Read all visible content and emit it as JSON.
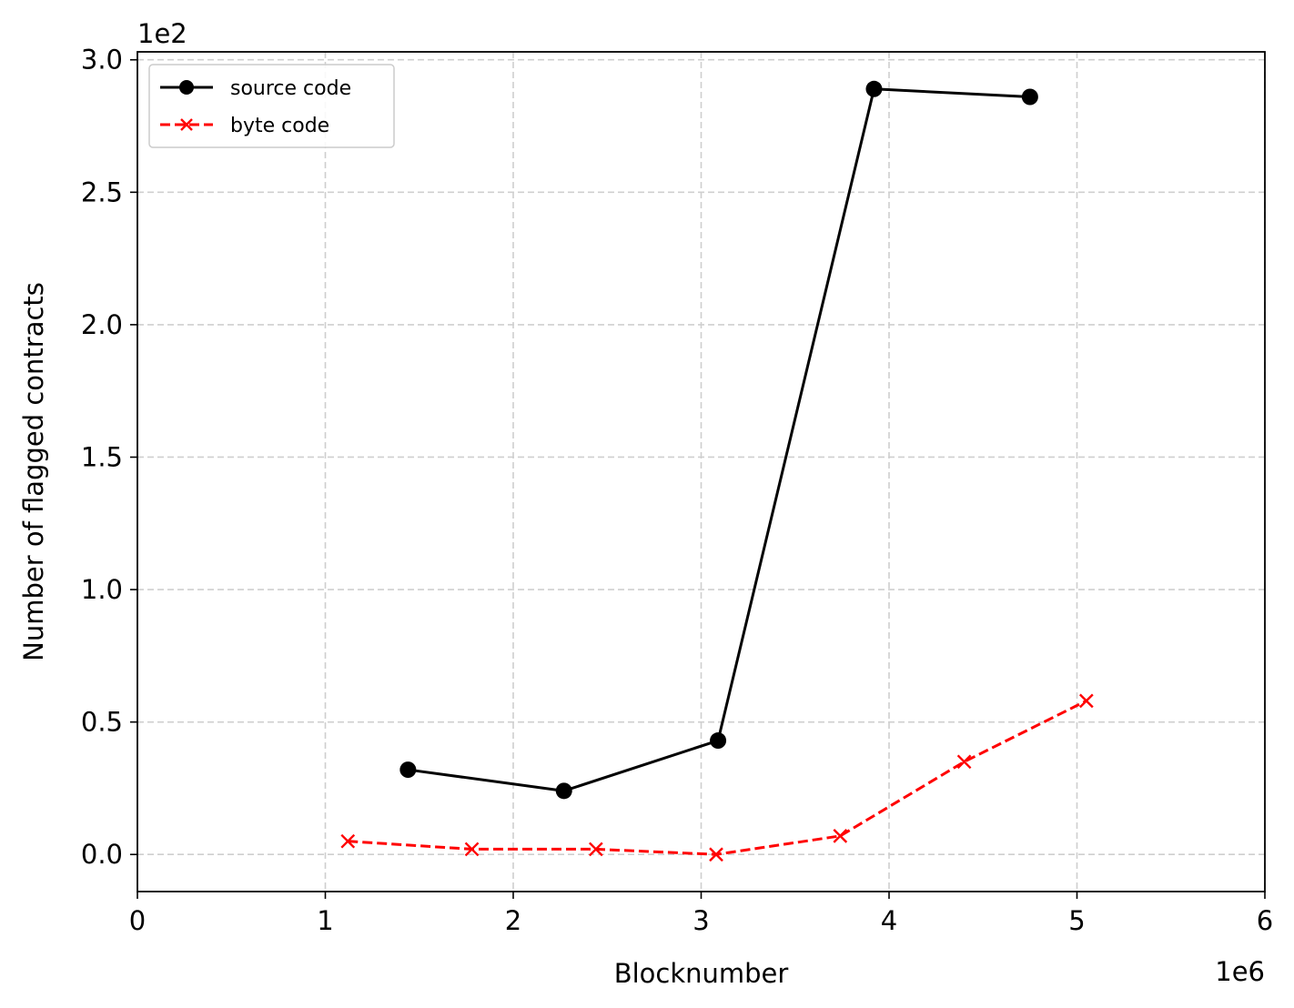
{
  "chart_data": {
    "type": "line",
    "title": "",
    "xlabel": "Blocknumber",
    "ylabel": "Number of flagged contracts",
    "x_offset_label": "1e6",
    "y_offset_label": "1e2",
    "xlim": [
      0,
      6
    ],
    "ylim": [
      -0.14,
      3.03
    ],
    "xticks": [
      0,
      1,
      2,
      3,
      4,
      5,
      6
    ],
    "xtick_labels": [
      "0",
      "1",
      "2",
      "3",
      "4",
      "5",
      "6"
    ],
    "yticks": [
      0.0,
      0.5,
      1.0,
      1.5,
      2.0,
      2.5,
      3.0
    ],
    "ytick_labels": [
      "0.0",
      "0.5",
      "1.0",
      "1.5",
      "2.0",
      "2.5",
      "3.0"
    ],
    "grid": true,
    "legend_position": "top-left",
    "series": [
      {
        "name": "source code",
        "color": "#000000",
        "line_style": "solid",
        "marker": "circle",
        "x": [
          1.44,
          2.27,
          3.09,
          3.92,
          4.75
        ],
        "y": [
          0.32,
          0.24,
          0.43,
          2.89,
          2.86
        ]
      },
      {
        "name": "byte code",
        "color": "#ff0000",
        "line_style": "dashed",
        "marker": "x",
        "x": [
          1.12,
          1.78,
          2.44,
          3.08,
          3.74,
          4.4,
          5.05
        ],
        "y": [
          0.05,
          0.02,
          0.02,
          0.0,
          0.07,
          0.35,
          0.58
        ]
      }
    ]
  }
}
